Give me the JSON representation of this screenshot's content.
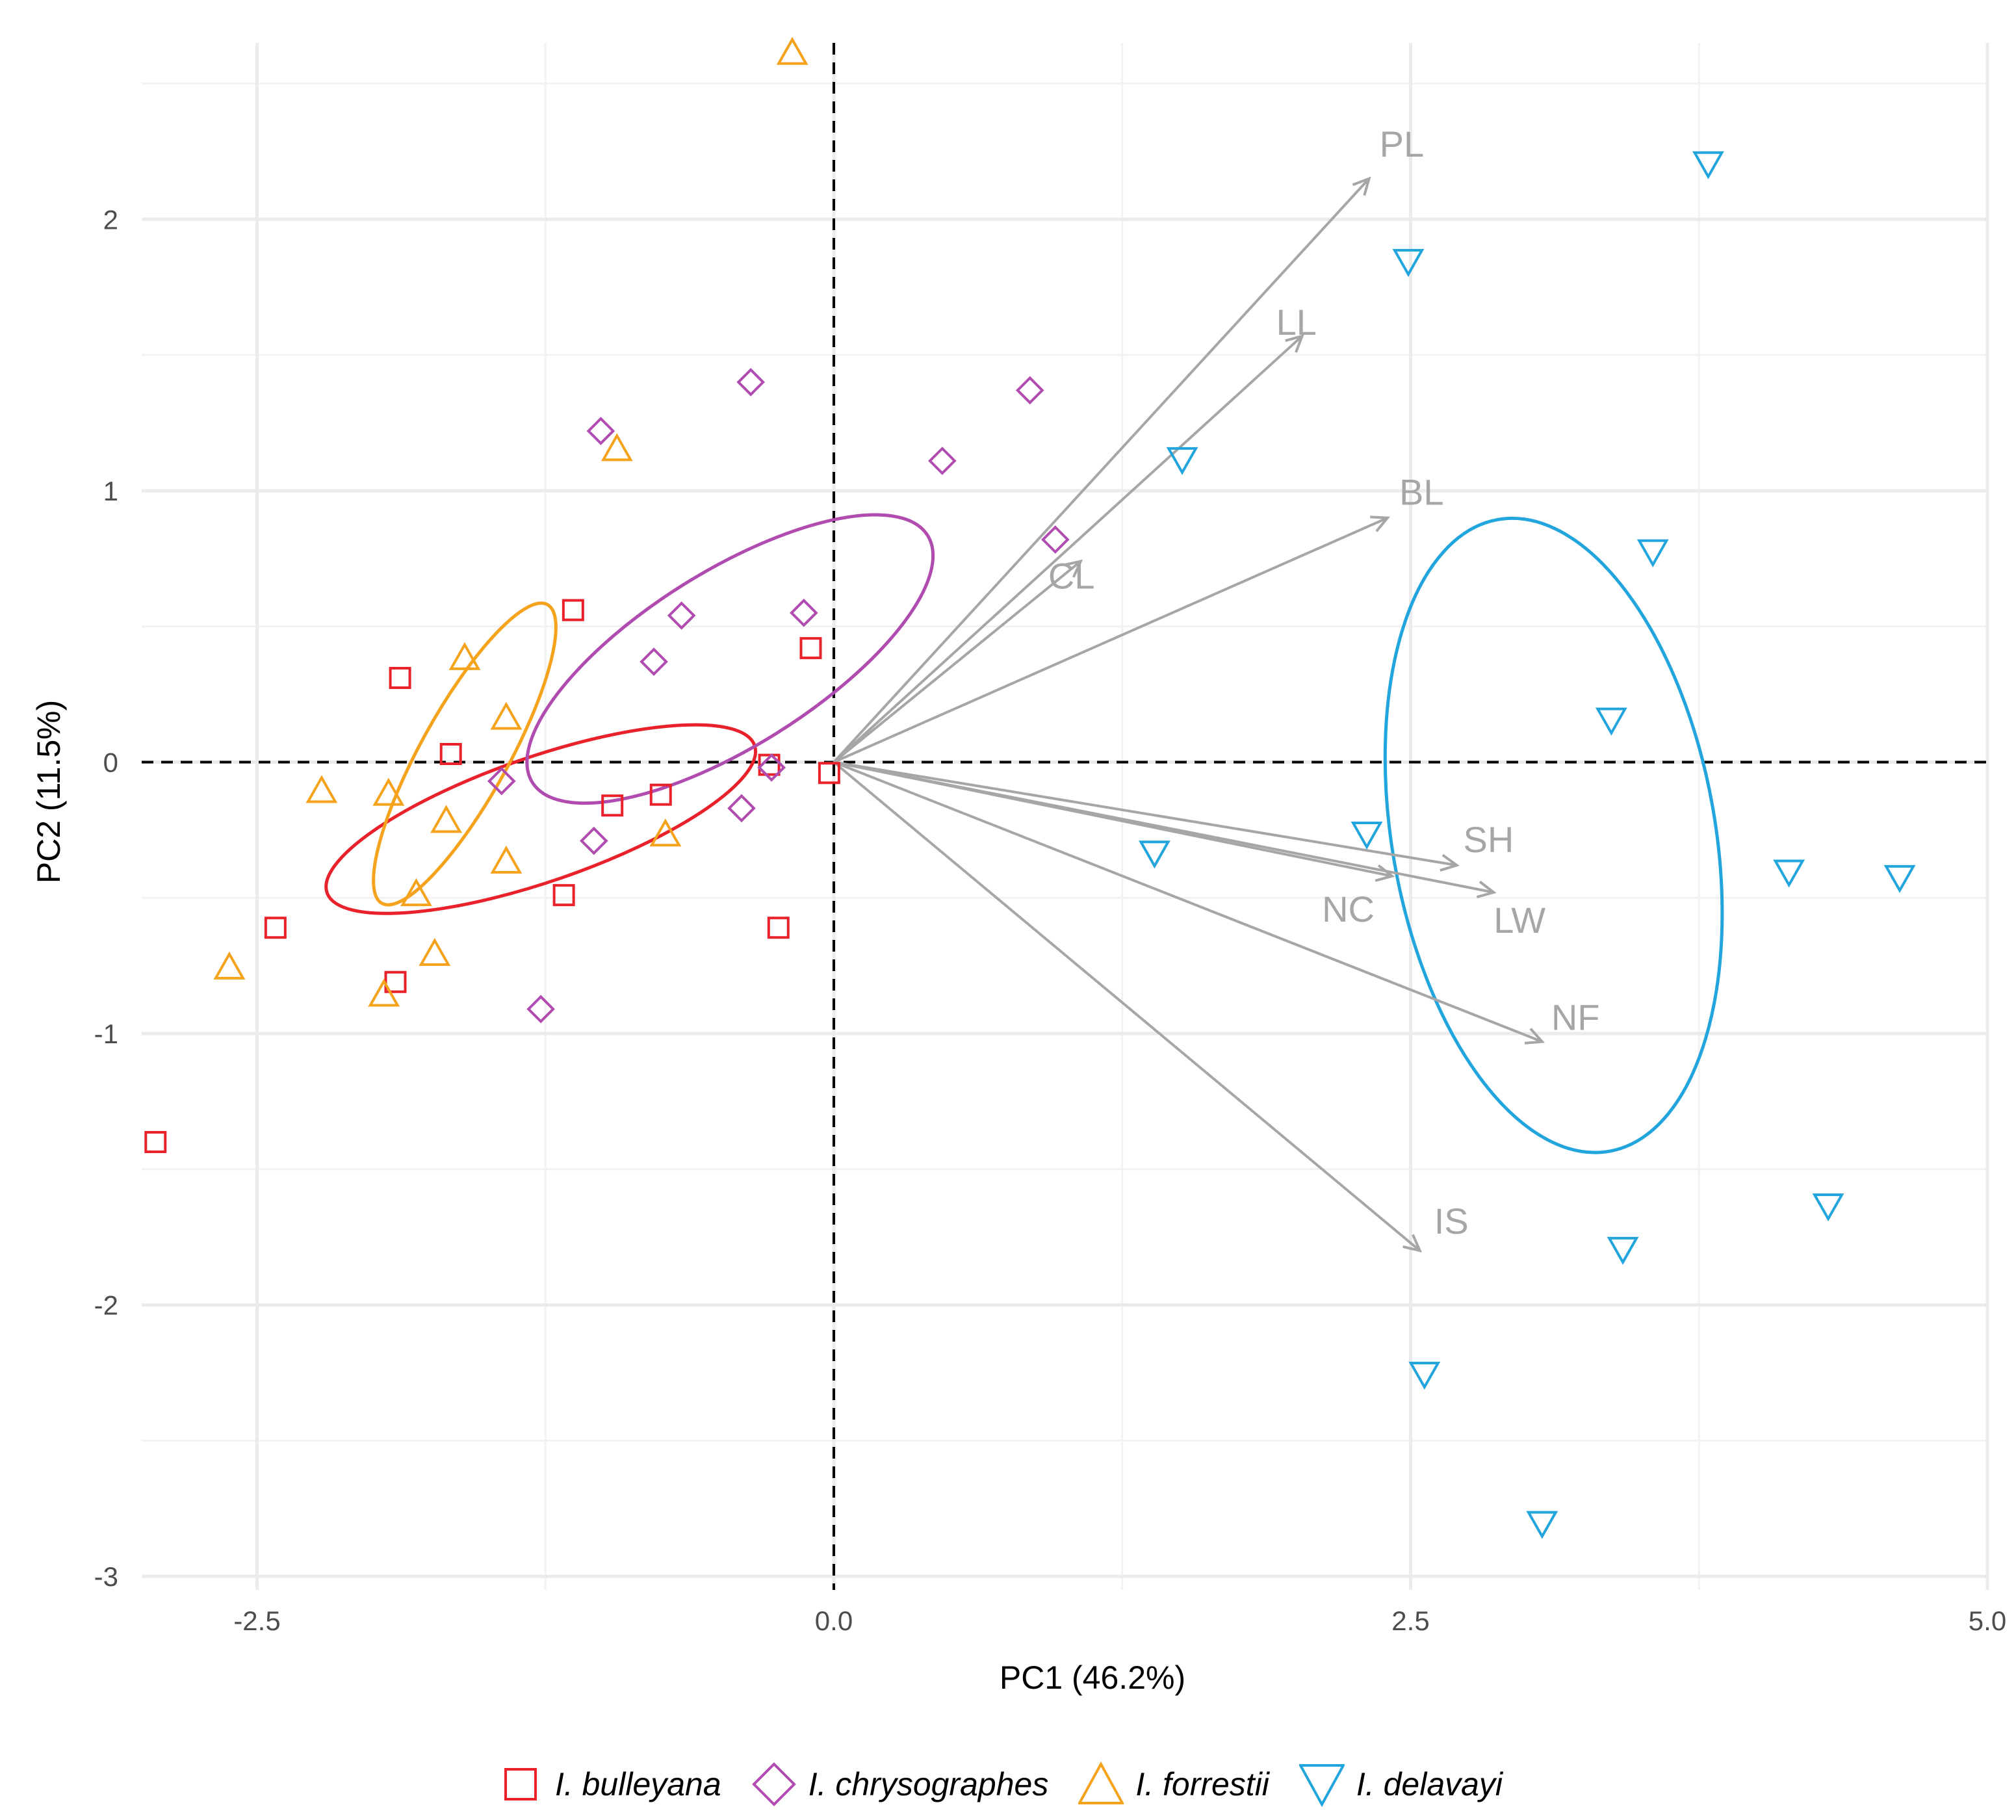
{
  "chart_data": {
    "type": "scatter",
    "subtype": "PCA biplot",
    "xlabel": "PC1 (46.2%)",
    "ylabel": "PC2 (11.5%)",
    "xlim": [
      -3.0,
      5.0
    ],
    "ylim": [
      -3.05,
      2.65
    ],
    "x_ticks": [
      -2.5,
      0.0,
      2.5,
      5.0
    ],
    "x_tick_labels": [
      "-2.5",
      "0.0",
      "2.5",
      "5.0"
    ],
    "y_ticks": [
      -3,
      -2,
      -1,
      0,
      1,
      2
    ],
    "y_tick_labels": [
      "-3",
      "-2",
      "-1",
      "0",
      "1",
      "2"
    ],
    "grid": true,
    "reference_lines": [
      "x = 0 dashed",
      "y = 0 dashed"
    ],
    "legend_position": "bottom",
    "colors": {
      "I. bulleyana": "#e8212b",
      "I. chrysographes": "#b04bb0",
      "I. forrestii": "#f5a21c",
      "I. delavayi": "#22a5dd",
      "loadings": "#a6a6a6"
    },
    "series": [
      {
        "name": "I. bulleyana",
        "marker": "square",
        "points": [
          [
            -2.94,
            -1.4
          ],
          [
            -2.42,
            -0.61
          ],
          [
            -1.88,
            0.31
          ],
          [
            -1.9,
            -0.81
          ],
          [
            -1.66,
            0.03
          ],
          [
            -1.13,
            0.56
          ],
          [
            -0.96,
            -0.16
          ],
          [
            -0.75,
            -0.12
          ],
          [
            -1.17,
            -0.49
          ],
          [
            -0.28,
            -0.01
          ],
          [
            -0.1,
            0.42
          ],
          [
            -0.24,
            -0.61
          ],
          [
            -0.02,
            -0.04
          ]
        ],
        "ellipse": {
          "cx": -1.27,
          "cy": -0.21,
          "rx": 0.98,
          "ry": 0.27,
          "angle_deg": 19
        }
      },
      {
        "name": "I. chrysographes",
        "marker": "diamond",
        "points": [
          [
            -0.36,
            1.4
          ],
          [
            -1.01,
            1.22
          ],
          [
            0.85,
            1.37
          ],
          [
            0.47,
            1.11
          ],
          [
            0.96,
            0.82
          ],
          [
            -0.66,
            0.54
          ],
          [
            -0.13,
            0.55
          ],
          [
            -0.78,
            0.37
          ],
          [
            -1.44,
            -0.07
          ],
          [
            -1.04,
            -0.29
          ],
          [
            -0.4,
            -0.17
          ],
          [
            -0.27,
            -0.02
          ],
          [
            -1.27,
            -0.91
          ]
        ],
        "ellipse": {
          "cx": -0.45,
          "cy": 0.38,
          "rx": 1.01,
          "ry": 0.38,
          "angle_deg": 32
        }
      },
      {
        "name": "I. forrestii",
        "marker": "triangle-up",
        "points": [
          [
            -0.18,
            2.61
          ],
          [
            -0.94,
            1.15
          ],
          [
            -1.6,
            0.38
          ],
          [
            -1.42,
            0.16
          ],
          [
            -2.22,
            -0.11
          ],
          [
            -1.93,
            -0.12
          ],
          [
            -1.68,
            -0.22
          ],
          [
            -1.42,
            -0.37
          ],
          [
            -1.81,
            -0.49
          ],
          [
            -0.73,
            -0.27
          ],
          [
            -2.62,
            -0.76
          ],
          [
            -1.73,
            -0.71
          ],
          [
            -1.95,
            -0.86
          ]
        ],
        "ellipse": {
          "cx": -1.6,
          "cy": 0.03,
          "rx": 0.74,
          "ry": 0.19,
          "angle_deg": 61
        }
      },
      {
        "name": "I. delavayi",
        "marker": "triangle-down",
        "points": [
          [
            3.79,
            2.21
          ],
          [
            2.49,
            1.85
          ],
          [
            1.51,
            1.12
          ],
          [
            3.55,
            0.78
          ],
          [
            3.37,
            0.16
          ],
          [
            1.39,
            -0.33
          ],
          [
            2.31,
            -0.26
          ],
          [
            4.14,
            -0.4
          ],
          [
            4.62,
            -0.42
          ],
          [
            4.31,
            -1.63
          ],
          [
            3.42,
            -1.79
          ],
          [
            2.56,
            -2.25
          ],
          [
            3.07,
            -2.8
          ]
        ],
        "ellipse": {
          "cx": 3.12,
          "cy": -0.27,
          "rx": 1.39,
          "ry": 0.7,
          "angle_deg": -80
        }
      }
    ],
    "loadings": [
      {
        "label": "PL",
        "x": 2.32,
        "y": 2.15
      },
      {
        "label": "LL",
        "x": 2.03,
        "y": 1.57
      },
      {
        "label": "BL",
        "x": 2.4,
        "y": 0.9
      },
      {
        "label": "CL",
        "x": 1.07,
        "y": 0.74
      },
      {
        "label": "SH",
        "x": 2.7,
        "y": -0.38
      },
      {
        "label": "LW",
        "x": 2.86,
        "y": -0.48
      },
      {
        "label": "NC",
        "x": 2.42,
        "y": -0.42
      },
      {
        "label": "NF",
        "x": 3.07,
        "y": -1.03
      },
      {
        "label": "IS",
        "x": 2.54,
        "y": -1.8
      }
    ]
  }
}
